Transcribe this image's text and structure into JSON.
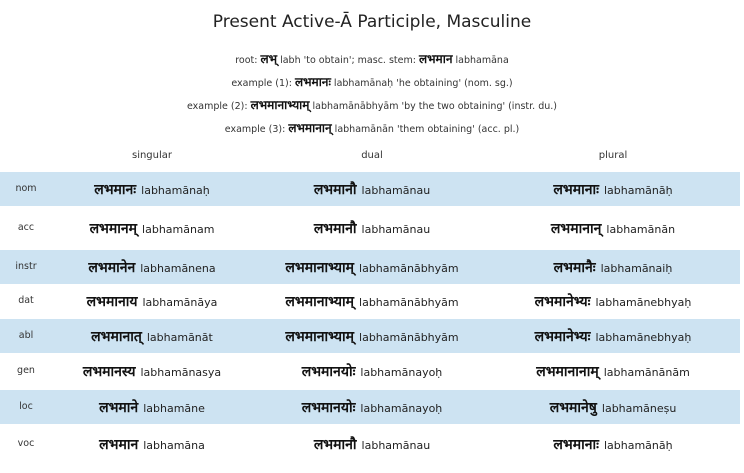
{
  "title": "Present Active-Ā Participle, Masculine",
  "info": [
    {
      "pre": "root: ",
      "dev": "लभ्",
      "mid": " labh 'to obtain'; masc. stem: ",
      "dev2": "लभमान",
      "post": " labhamāna"
    },
    {
      "pre": "example (1): ",
      "dev": "लभमानः",
      "mid": " labhamānaḥ 'he obtaining' (nom. sg.)",
      "dev2": "",
      "post": ""
    },
    {
      "pre": "example (2): ",
      "dev": "लभमानाभ्याम्",
      "mid": " labhamānābhyām 'by the two obtaining' (instr. du.)",
      "dev2": "",
      "post": ""
    },
    {
      "pre": "example (3): ",
      "dev": "लभमानान्",
      "mid": " labhamānān 'them obtaining' (acc. pl.)",
      "dev2": "",
      "post": ""
    }
  ],
  "columns": [
    "singular",
    "dual",
    "plural"
  ],
  "rows": [
    {
      "case": "nom",
      "cells": [
        [
          "लभमानः",
          "labhamānaḥ"
        ],
        [
          "लभमानौ",
          "labhamānau"
        ],
        [
          "लभमानाः",
          "labhamānāḥ"
        ]
      ]
    },
    {
      "case": "acc",
      "cells": [
        [
          "लभमानम्",
          "labhamānam"
        ],
        [
          "लभमानौ",
          "labhamānau"
        ],
        [
          "लभमानान्",
          "labhamānān"
        ]
      ]
    },
    {
      "case": "instr",
      "cells": [
        [
          "लभमानेन",
          "labhamānena"
        ],
        [
          "लभमानाभ्याम्",
          "labhamānābhyām"
        ],
        [
          "लभमानैः",
          "labhamānaiḥ"
        ]
      ]
    },
    {
      "case": "dat",
      "cells": [
        [
          "लभमानाय",
          "labhamānāya"
        ],
        [
          "लभमानाभ्याम्",
          "labhamānābhyām"
        ],
        [
          "लभमानेभ्यः",
          "labhamānebhyaḥ"
        ]
      ]
    },
    {
      "case": "abl",
      "cells": [
        [
          "लभमानात्",
          "labhamānāt"
        ],
        [
          "लभमानाभ्याम्",
          "labhamānābhyām"
        ],
        [
          "लभमानेभ्यः",
          "labhamānebhyaḥ"
        ]
      ]
    },
    {
      "case": "gen",
      "cells": [
        [
          "लभमानस्य",
          "labhamānasya"
        ],
        [
          "लभमानयोः",
          "labhamānayoḥ"
        ],
        [
          "लभमानानाम्",
          "labhamānānām"
        ]
      ]
    },
    {
      "case": "loc",
      "cells": [
        [
          "लभमाने",
          "labhamāne"
        ],
        [
          "लभमानयोः",
          "labhamānayoḥ"
        ],
        [
          "लभमानेषु",
          "labhamāneṣu"
        ]
      ]
    },
    {
      "case": "voc",
      "cells": [
        [
          "लभमान",
          "labhamāna"
        ],
        [
          "लभमानौ",
          "labhamānau"
        ],
        [
          "लभमानाः",
          "labhamānāḥ"
        ]
      ]
    }
  ],
  "colors": {
    "shade": "#cde3f2"
  }
}
